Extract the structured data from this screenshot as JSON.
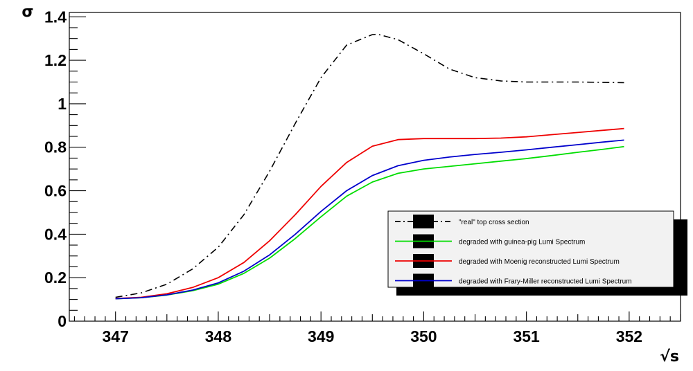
{
  "chart_data": {
    "type": "line",
    "title": "",
    "xlabel": "√s",
    "ylabel": "σ",
    "xlim": [
      346.55,
      352.5
    ],
    "ylim": [
      0,
      1.42
    ],
    "x_ticks": [
      347,
      348,
      349,
      350,
      351,
      352
    ],
    "x_tick_labels": [
      "347",
      "348",
      "349",
      "350",
      "351",
      "352"
    ],
    "y_ticks": [
      0,
      0.2,
      0.4,
      0.6,
      0.8,
      1,
      1.2,
      1.4
    ],
    "y_tick_labels": [
      "0",
      "0.2",
      "0.4",
      "0.6",
      "0.8",
      "1",
      "1.2",
      "1.4"
    ],
    "grid": false,
    "legend_position": "lower-right",
    "series": [
      {
        "name": "\"real\" top cross section",
        "color": "#000000",
        "style": "dash-dot",
        "x": [
          347.0,
          347.25,
          347.5,
          347.75,
          348.0,
          348.25,
          348.5,
          348.75,
          349.0,
          349.25,
          349.5,
          349.55,
          349.75,
          350.0,
          350.25,
          350.5,
          350.75,
          351.0,
          351.25,
          351.5,
          351.75,
          351.95
        ],
        "y": [
          0.11,
          0.13,
          0.17,
          0.24,
          0.34,
          0.49,
          0.69,
          0.91,
          1.12,
          1.27,
          1.318,
          1.32,
          1.295,
          1.23,
          1.16,
          1.12,
          1.105,
          1.1,
          1.1,
          1.1,
          1.098,
          1.097
        ]
      },
      {
        "name": "degraded with guinea-pig Lumi Spectrum",
        "color": "#00dd00",
        "style": "solid",
        "x": [
          347.0,
          347.25,
          347.5,
          347.75,
          348.0,
          348.25,
          348.5,
          348.75,
          349.0,
          349.25,
          349.5,
          349.75,
          350.0,
          350.25,
          350.5,
          350.75,
          351.0,
          351.25,
          351.5,
          351.75,
          351.95
        ],
        "y": [
          0.103,
          0.108,
          0.12,
          0.14,
          0.17,
          0.22,
          0.29,
          0.38,
          0.48,
          0.575,
          0.64,
          0.68,
          0.7,
          0.712,
          0.724,
          0.736,
          0.748,
          0.762,
          0.777,
          0.791,
          0.803
        ]
      },
      {
        "name": "degraded with Moenig reconstructed Lumi Spectrum",
        "color": "#ee0000",
        "style": "solid",
        "x": [
          347.0,
          347.25,
          347.5,
          347.75,
          348.0,
          348.25,
          348.5,
          348.75,
          349.0,
          349.25,
          349.5,
          349.75,
          350.0,
          350.25,
          350.5,
          350.75,
          351.0,
          351.25,
          351.5,
          351.75,
          351.95
        ],
        "y": [
          0.104,
          0.11,
          0.126,
          0.155,
          0.2,
          0.27,
          0.37,
          0.49,
          0.62,
          0.73,
          0.805,
          0.835,
          0.84,
          0.84,
          0.84,
          0.842,
          0.848,
          0.858,
          0.868,
          0.878,
          0.886
        ]
      },
      {
        "name": "degraded with Frary-Miller reconstructed Lumi Spectrum",
        "color": "#0000cc",
        "style": "solid",
        "x": [
          347.0,
          347.25,
          347.5,
          347.75,
          348.0,
          348.25,
          348.5,
          348.75,
          349.0,
          349.25,
          349.5,
          349.75,
          350.0,
          350.25,
          350.5,
          350.75,
          351.0,
          351.25,
          351.5,
          351.75,
          351.95
        ],
        "y": [
          0.103,
          0.108,
          0.121,
          0.143,
          0.176,
          0.23,
          0.305,
          0.4,
          0.505,
          0.6,
          0.67,
          0.715,
          0.74,
          0.755,
          0.767,
          0.777,
          0.788,
          0.8,
          0.812,
          0.824,
          0.833
        ]
      }
    ]
  }
}
